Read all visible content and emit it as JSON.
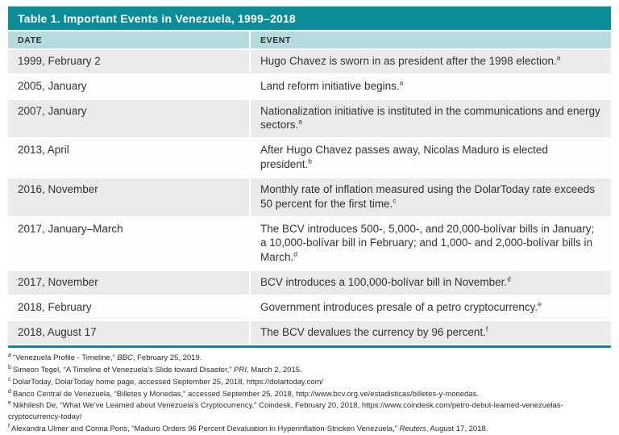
{
  "colors": {
    "teal": "#0b8c96",
    "headerTeal": "#b5dbde",
    "rowGray": "#ebebeb",
    "rowWhite": "#fdfdfd",
    "text": "#333333"
  },
  "table": {
    "title": "Table 1. Important Events in Venezuela, 1999–2018",
    "columns": {
      "date": "DATE",
      "event": "EVENT"
    },
    "rows": [
      {
        "date": "1999, February 2",
        "event": "Hugo Chavez is sworn in as president after the 1998 election.",
        "note": "a"
      },
      {
        "date": "2005, January",
        "event": "Land reform initiative begins.",
        "note": "a"
      },
      {
        "date": "2007, January",
        "event": "Nationalization initiative is instituted in the communications and energy sectors.",
        "note": "a"
      },
      {
        "date": "2013, April",
        "event": "After Hugo Chavez passes away, Nicolas Maduro is elected president.",
        "note": "b"
      },
      {
        "date": "2016, November",
        "event": "Monthly rate of inflation measured using the DolarToday rate exceeds 50 percent for the first time.",
        "note": "c"
      },
      {
        "date": "2017, January–March",
        "event": "The BCV introduces 500-, 5,000-, and 20,000-bolívar bills in January; a 10,000-bolívar bill in February; and 1,000- and 2,000-bolívar bills in March.",
        "note": "d"
      },
      {
        "date": "2017, November",
        "event": "BCV introduces a 100,000-bolívar bill in November.",
        "note": "d"
      },
      {
        "date": "2018, February",
        "event": "Government introduces presale of a petro cryptocurrency.",
        "note": "e"
      },
      {
        "date": "2018, August 17",
        "event": "The BCV devalues the currency by 96 percent.",
        "note": "f"
      }
    ]
  },
  "footnotes": [
    {
      "marker": "a",
      "before": "“Venezuela Profile - Timeline,” ",
      "cite": "BBC",
      "after": ", February 25, 2019."
    },
    {
      "marker": "b",
      "before": "Simeon Tegel, “A Timeline of Venezuela’s Slide toward Disaster,” ",
      "cite": "PRI",
      "after": ", March 2, 2015."
    },
    {
      "marker": "c",
      "before": "DolarToday, DolarToday home page, accessed September 25, 2018, https://dolartoday.com/",
      "cite": "",
      "after": ""
    },
    {
      "marker": "d",
      "before": "Banco Central de Venezuela, “Billetes y Monedas,” accessed September 25, 2018, http://www.bcv.org.ve/estadisticas/billetes-y-monedas.",
      "cite": "",
      "after": ""
    },
    {
      "marker": "e",
      "before": "Nikhilesh De, “What We’ve Learned about Venezuela’s Cryptocurrency,” Coindesk, February 20, 2018, https://www.coindesk.com/petro-debut-learned-venezuelas-cryptocurrency-today/",
      "cite": "",
      "after": ""
    },
    {
      "marker": "f",
      "before": "Alexandra Ulmer and Corina Pons, “Maduro Orders 96 Percent Devaluation in Hyperinflation-Stricken Venezuela,” ",
      "cite": "Reuters",
      "after": ", August 17, 2018."
    }
  ]
}
